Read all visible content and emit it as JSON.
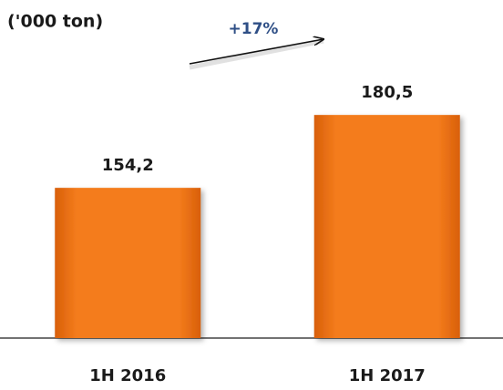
{
  "chart_data": {
    "type": "bar",
    "title": "('000 ton)",
    "categories": [
      "1H 2016",
      "1H 2017"
    ],
    "values": [
      154.2,
      180.5
    ],
    "value_labels": [
      "154,2",
      "180,5"
    ],
    "color": "#f07a1a",
    "ylim": [
      100,
      220
    ],
    "annotation": "+17%"
  }
}
